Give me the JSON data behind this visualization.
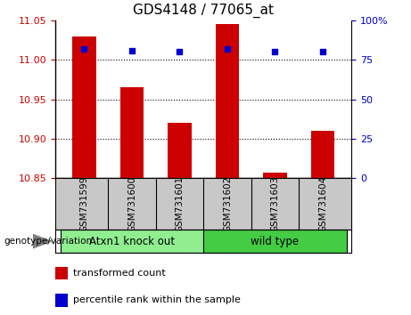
{
  "title": "GDS4148 / 77065_at",
  "samples": [
    "GSM731599",
    "GSM731600",
    "GSM731601",
    "GSM731602",
    "GSM731603",
    "GSM731604"
  ],
  "red_values": [
    11.03,
    10.965,
    10.92,
    11.045,
    10.857,
    10.91
  ],
  "blue_values": [
    82,
    81,
    80,
    82,
    80,
    80
  ],
  "ylim_left": [
    10.85,
    11.05
  ],
  "ylim_right": [
    0,
    100
  ],
  "yticks_left": [
    10.85,
    10.9,
    10.95,
    11.0,
    11.05
  ],
  "yticks_right": [
    0,
    25,
    50,
    75,
    100
  ],
  "ytick_labels_right": [
    "0",
    "25",
    "50",
    "75",
    "100%"
  ],
  "groups": [
    {
      "label": "Atxn1 knock out",
      "start": 0,
      "end": 3,
      "color": "#90EE90"
    },
    {
      "label": "wild type",
      "start": 3,
      "end": 6,
      "color": "#44CC44"
    }
  ],
  "group_label": "genotype/variation",
  "bar_color": "#CC0000",
  "blue_color": "#0000CC",
  "base_value": 10.85,
  "legend_red_label": "transformed count",
  "legend_blue_label": "percentile rank within the sample",
  "bar_width": 0.5,
  "dotted_line_color": "#000000",
  "tick_area_color": "#C8C8C8",
  "background_plot": "#FFFFFF",
  "left_tick_color": "#CC0000",
  "right_tick_color": "#0000CC"
}
